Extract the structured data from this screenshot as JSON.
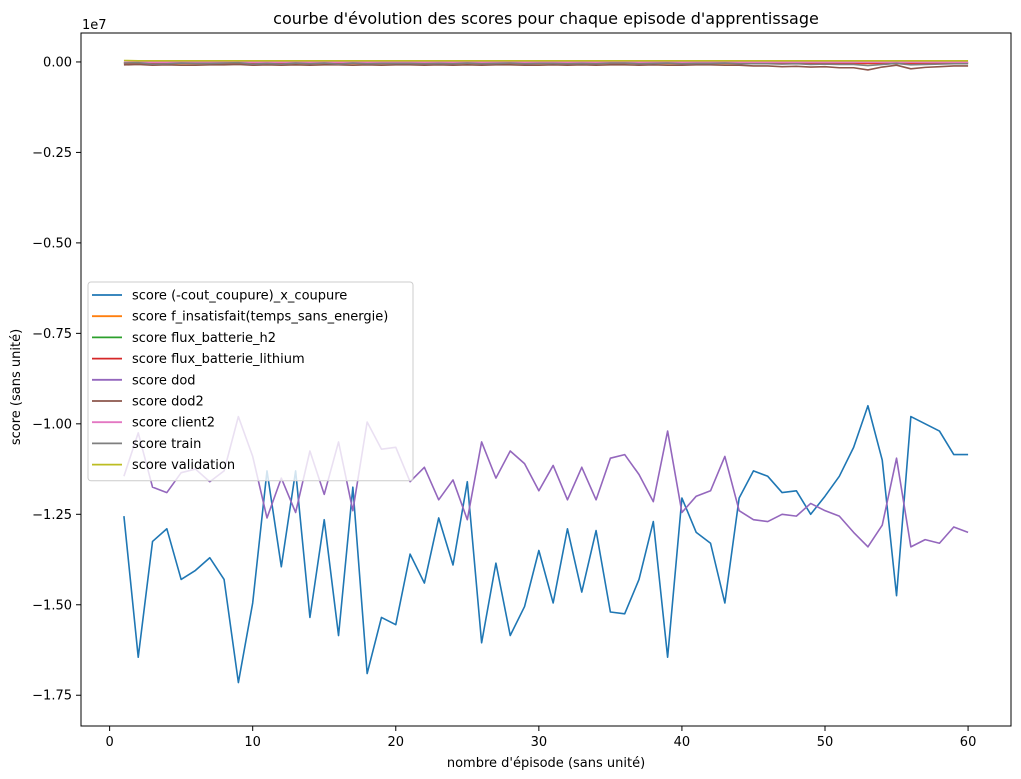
{
  "chart_data": {
    "type": "line",
    "title": "courbe d'évolution des scores pour chaque episode d'apprentissage",
    "xlabel": "nombre d'épisode (sans unité)",
    "ylabel": "score (sans unité)",
    "y_offset_text": "1e7",
    "xlim": [
      -2,
      63
    ],
    "ylim": [
      -18350000,
      800000
    ],
    "x_ticks": [
      0,
      10,
      20,
      30,
      40,
      50,
      60
    ],
    "x_tick_labels": [
      "0",
      "10",
      "20",
      "30",
      "40",
      "50",
      "60"
    ],
    "y_ticks": [
      0,
      -2500000,
      -5000000,
      -7500000,
      -10000000,
      -12500000,
      -15000000,
      -17500000
    ],
    "y_tick_labels": [
      "0.00",
      "−0.25",
      "−0.50",
      "−0.75",
      "−1.00",
      "−1.25",
      "−1.50",
      "−1.75"
    ],
    "grid": false,
    "legend_position": "center-left",
    "x": [
      1,
      2,
      3,
      4,
      5,
      6,
      7,
      8,
      9,
      10,
      11,
      12,
      13,
      14,
      15,
      16,
      17,
      18,
      19,
      20,
      21,
      22,
      23,
      24,
      25,
      26,
      27,
      28,
      29,
      30,
      31,
      32,
      33,
      34,
      35,
      36,
      37,
      38,
      39,
      40,
      41,
      42,
      43,
      44,
      45,
      46,
      47,
      48,
      49,
      50,
      51,
      52,
      53,
      54,
      55,
      56,
      57,
      58,
      59,
      60
    ],
    "series": [
      {
        "name": "score (-cout_coupure)_x_coupure",
        "color": "#1f77b4",
        "values": [
          -12550000,
          -16450000,
          -13250000,
          -12900000,
          -14300000,
          -14050000,
          -13700000,
          -14300000,
          -17150000,
          -14950000,
          -11300000,
          -13950000,
          -11300000,
          -15350000,
          -12650000,
          -15850000,
          -11750000,
          -16900000,
          -15350000,
          -15550000,
          -13600000,
          -14400000,
          -12600000,
          -13900000,
          -11600000,
          -16050000,
          -13850000,
          -15850000,
          -15050000,
          -13500000,
          -14950000,
          -12900000,
          -14650000,
          -12950000,
          -15200000,
          -15250000,
          -14300000,
          -12700000,
          -16450000,
          -12050000,
          -13000000,
          -13300000,
          -14950000,
          -12050000,
          -11300000,
          -11450000,
          -11900000,
          -11850000,
          -12500000,
          -12000000,
          -11450000,
          -10650000,
          -9500000,
          -11000000,
          -14750000,
          -9800000,
          -10000000,
          -10200000,
          -10850000,
          -10850000
        ]
      },
      {
        "name": "score f_insatisfait(temps_sans_energie)",
        "color": "#ff7f0e",
        "values": [
          -40000,
          -60000,
          -40000,
          -50000,
          -40000,
          -40000,
          -40000,
          -40000,
          -40000,
          -40000,
          -40000,
          -40000,
          -40000,
          -40000,
          -40000,
          -40000,
          -40000,
          -40000,
          -40000,
          -40000,
          -40000,
          -40000,
          -40000,
          -40000,
          -40000,
          -40000,
          -40000,
          -40000,
          -40000,
          -40000,
          -40000,
          -40000,
          -40000,
          -40000,
          -40000,
          -40000,
          -40000,
          -40000,
          -40000,
          -40000,
          -40000,
          -40000,
          -40000,
          -40000,
          -40000,
          -40000,
          -40000,
          -40000,
          -40000,
          -40000,
          -40000,
          -40000,
          -40000,
          -40000,
          -40000,
          -40000,
          -40000,
          -40000,
          -40000,
          -40000
        ]
      },
      {
        "name": "score flux_batterie_h2",
        "color": "#2ca02c",
        "values": [
          -20000,
          -20000,
          -20000,
          -20000,
          -20000,
          -20000,
          -20000,
          -20000,
          -20000,
          -20000,
          -20000,
          -20000,
          -20000,
          -20000,
          -20000,
          -20000,
          -20000,
          -20000,
          -20000,
          -20000,
          -20000,
          -20000,
          -20000,
          -20000,
          -20000,
          -20000,
          -20000,
          -20000,
          -20000,
          -20000,
          -20000,
          -20000,
          -20000,
          -20000,
          -20000,
          -20000,
          -20000,
          -20000,
          -20000,
          -20000,
          -20000,
          -20000,
          -20000,
          -20000,
          -20000,
          -20000,
          -20000,
          -20000,
          -20000,
          -20000,
          -20000,
          -20000,
          -20000,
          -20000,
          -20000,
          -20000,
          -20000,
          -20000,
          -20000,
          -20000
        ]
      },
      {
        "name": "score flux_batterie_lithium",
        "color": "#d62728",
        "values": [
          -30000,
          -30000,
          -30000,
          -30000,
          -30000,
          -30000,
          -30000,
          -30000,
          -30000,
          -30000,
          -30000,
          -30000,
          -30000,
          -30000,
          -30000,
          -30000,
          -30000,
          -30000,
          -30000,
          -30000,
          -30000,
          -30000,
          -30000,
          -30000,
          -30000,
          -30000,
          -30000,
          -30000,
          -30000,
          -30000,
          -30000,
          -30000,
          -30000,
          -30000,
          -30000,
          -30000,
          -30000,
          -30000,
          -30000,
          -30000,
          -30000,
          -30000,
          -30000,
          -30000,
          -30000,
          -30000,
          -30000,
          -30000,
          -30000,
          -30000,
          -30000,
          -30000,
          -30000,
          -30000,
          -30000,
          -30000,
          -30000,
          -30000,
          -30000,
          -30000
        ]
      },
      {
        "name": "score dod",
        "color": "#9467bd",
        "values": [
          -11450000,
          -10250000,
          -11750000,
          -11900000,
          -11350000,
          -11250000,
          -11600000,
          -11300000,
          -9800000,
          -10900000,
          -12600000,
          -11500000,
          -12450000,
          -10750000,
          -11950000,
          -10500000,
          -12400000,
          -9950000,
          -10700000,
          -10650000,
          -11600000,
          -11200000,
          -12100000,
          -11550000,
          -12650000,
          -10500000,
          -11500000,
          -10750000,
          -11100000,
          -11850000,
          -11150000,
          -12100000,
          -11200000,
          -12100000,
          -10950000,
          -10850000,
          -11400000,
          -12150000,
          -10200000,
          -12450000,
          -12000000,
          -11850000,
          -10900000,
          -12400000,
          -12650000,
          -12700000,
          -12500000,
          -12550000,
          -12200000,
          -12400000,
          -12550000,
          -13000000,
          -13400000,
          -12800000,
          -10950000,
          -13400000,
          -13200000,
          -13300000,
          -12850000,
          -13000000
        ]
      },
      {
        "name": "score dod2",
        "color": "#8c564b",
        "values": [
          -80000,
          -70000,
          -90000,
          -80000,
          -90000,
          -90000,
          -80000,
          -80000,
          -70000,
          -90000,
          -80000,
          -90000,
          -80000,
          -90000,
          -80000,
          -80000,
          -90000,
          -80000,
          -90000,
          -80000,
          -80000,
          -90000,
          -80000,
          -90000,
          -80000,
          -90000,
          -80000,
          -80000,
          -90000,
          -90000,
          -80000,
          -90000,
          -80000,
          -90000,
          -80000,
          -80000,
          -90000,
          -80000,
          -90000,
          -90000,
          -80000,
          -80000,
          -90000,
          -90000,
          -110000,
          -110000,
          -130000,
          -120000,
          -140000,
          -130000,
          -160000,
          -160000,
          -220000,
          -140000,
          -90000,
          -190000,
          -150000,
          -130000,
          -110000,
          -110000
        ]
      },
      {
        "name": "score client2",
        "color": "#e377c2",
        "values": [
          -10000,
          -10000,
          -10000,
          -10000,
          -10000,
          -10000,
          -10000,
          -10000,
          -10000,
          -10000,
          -10000,
          -10000,
          -10000,
          -10000,
          -10000,
          -10000,
          -10000,
          -10000,
          -10000,
          -10000,
          -10000,
          -10000,
          -10000,
          -10000,
          -10000,
          -10000,
          -10000,
          -10000,
          -10000,
          -10000,
          -10000,
          -10000,
          -10000,
          -10000,
          -10000,
          -10000,
          -10000,
          -10000,
          -10000,
          -10000,
          -10000,
          -10000,
          -10000,
          -10000,
          -10000,
          -10000,
          -10000,
          -10000,
          -10000,
          -10000,
          -10000,
          -10000,
          -10000,
          -10000,
          -10000,
          -10000,
          -10000,
          -10000,
          -10000,
          -10000
        ]
      },
      {
        "name": "score train",
        "color": "#7f7f7f",
        "values": [
          -30000,
          -20000,
          -60000,
          -50000,
          -30000,
          -40000,
          -40000,
          -30000,
          -20000,
          -60000,
          -40000,
          -60000,
          -30000,
          -50000,
          -30000,
          -60000,
          -30000,
          -50000,
          -40000,
          -40000,
          -40000,
          -50000,
          -40000,
          -50000,
          -30000,
          -50000,
          -40000,
          -30000,
          -50000,
          -40000,
          -40000,
          -50000,
          -40000,
          -50000,
          -30000,
          -30000,
          -50000,
          -40000,
          -30000,
          -50000,
          -40000,
          -40000,
          -30000,
          -50000,
          -50000,
          -50000,
          -60000,
          -50000,
          -70000,
          -60000,
          -70000,
          -70000,
          -100000,
          -70000,
          -40000,
          -80000,
          -70000,
          -60000,
          -50000,
          -50000
        ]
      },
      {
        "name": "score validation",
        "color": "#bcbd22",
        "values": [
          40000,
          30000,
          30000,
          30000,
          30000,
          30000,
          30000,
          30000,
          30000,
          30000,
          30000,
          30000,
          30000,
          30000,
          30000,
          30000,
          30000,
          30000,
          30000,
          30000,
          30000,
          30000,
          30000,
          30000,
          30000,
          30000,
          30000,
          30000,
          30000,
          30000,
          30000,
          30000,
          30000,
          30000,
          30000,
          30000,
          30000,
          30000,
          30000,
          30000,
          30000,
          30000,
          30000,
          30000,
          30000,
          30000,
          30000,
          30000,
          30000,
          30000,
          30000,
          30000,
          30000,
          30000,
          30000,
          30000,
          30000,
          30000,
          30000,
          30000
        ]
      }
    ]
  }
}
